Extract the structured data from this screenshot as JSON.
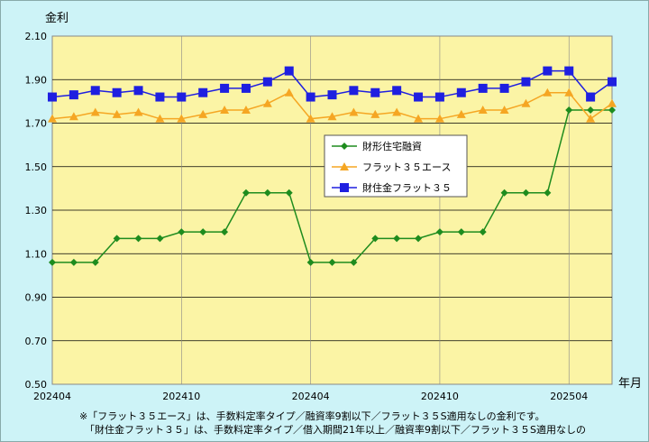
{
  "chart_data": {
    "type": "line",
    "ylabel": "金利",
    "xlabel": "年月",
    "ylim": [
      0.5,
      2.1
    ],
    "yticks": [
      "2.10",
      "1.90",
      "1.70",
      "1.50",
      "1.30",
      "1.10",
      "0.90",
      "0.70",
      "0.50"
    ],
    "xtick_labels": [
      {
        "index": 0,
        "label": "202404"
      },
      {
        "index": 6,
        "label": "202410"
      },
      {
        "index": 12,
        "label": "202404"
      },
      {
        "index": 18,
        "label": "202410"
      },
      {
        "index": 24,
        "label": "202504"
      }
    ],
    "point_count": 27,
    "grid": true,
    "legend_position": "center-right",
    "series": [
      {
        "name": "財形住宅融資",
        "color": "#1e8c1e",
        "marker": "diamond",
        "values": [
          1.06,
          1.06,
          1.06,
          1.17,
          1.17,
          1.17,
          1.2,
          1.2,
          1.2,
          1.38,
          1.38,
          1.38,
          1.06,
          1.06,
          1.06,
          1.17,
          1.17,
          1.17,
          1.2,
          1.2,
          1.2,
          1.38,
          1.38,
          1.38,
          1.76,
          1.76,
          1.76
        ]
      },
      {
        "name": "フラット３５エース",
        "color": "#f5a623",
        "marker": "triangle",
        "values": [
          1.72,
          1.73,
          1.75,
          1.74,
          1.75,
          1.72,
          1.72,
          1.74,
          1.76,
          1.76,
          1.79,
          1.84,
          1.72,
          1.73,
          1.75,
          1.74,
          1.75,
          1.72,
          1.72,
          1.74,
          1.76,
          1.76,
          1.79,
          1.84,
          1.84,
          1.72,
          1.79
        ]
      },
      {
        "name": "財住金フラット３５",
        "color": "#1f1fe0",
        "marker": "square",
        "values": [
          1.82,
          1.83,
          1.85,
          1.84,
          1.85,
          1.82,
          1.82,
          1.84,
          1.86,
          1.86,
          1.89,
          1.94,
          1.82,
          1.83,
          1.85,
          1.84,
          1.85,
          1.82,
          1.82,
          1.84,
          1.86,
          1.86,
          1.89,
          1.94,
          1.94,
          1.82,
          1.89
        ]
      }
    ],
    "notes": [
      "※「フラット３５エース」は、手数料定率タイプ／融資率9割以下／フラット３５S適用なしの金利です。",
      "「財住金フラット３５」は、手数料定率タイプ／借入期間21年以上／融資率9割以下／フラット３５S適用なしの"
    ],
    "colors": {
      "plot_background": "#fbf4a5",
      "page_background": "#cdf3f7"
    }
  }
}
